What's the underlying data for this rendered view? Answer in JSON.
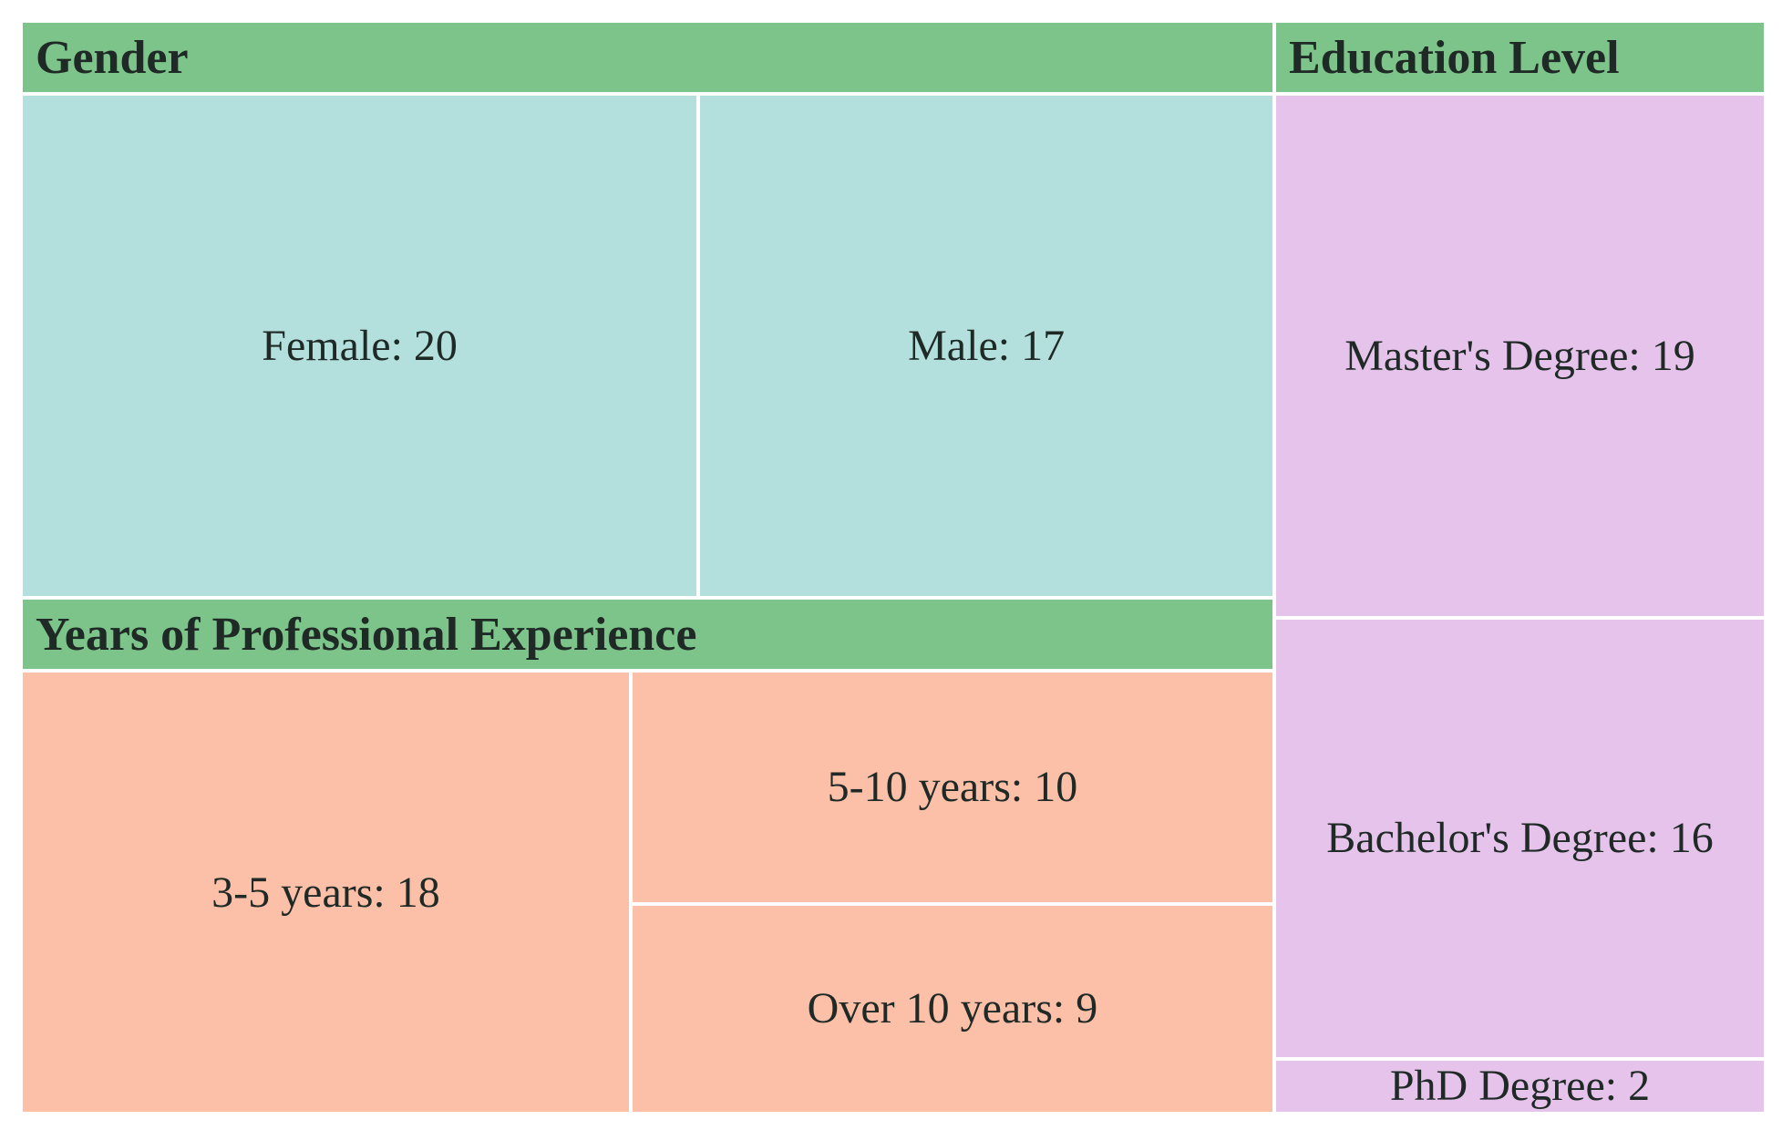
{
  "chart_data": {
    "type": "treemap",
    "groups": [
      {
        "name": "Gender",
        "color": "#b3dfdc",
        "items": [
          {
            "label": "Female",
            "value": 20
          },
          {
            "label": "Male",
            "value": 17
          }
        ]
      },
      {
        "name": "Years of Professional Experience",
        "color": "#fcbfa8",
        "items": [
          {
            "label": "3-5 years",
            "value": 18
          },
          {
            "label": "5-10 years",
            "value": 10
          },
          {
            "label": "Over 10 years",
            "value": 9
          }
        ]
      },
      {
        "name": "Education Level",
        "color": "#e6c3ea",
        "items": [
          {
            "label": "Master's Degree",
            "value": 19
          },
          {
            "label": "Bachelor's Degree",
            "value": 16
          },
          {
            "label": "PhD Degree",
            "value": 2
          }
        ]
      }
    ],
    "header_color": "#7dc48a"
  }
}
